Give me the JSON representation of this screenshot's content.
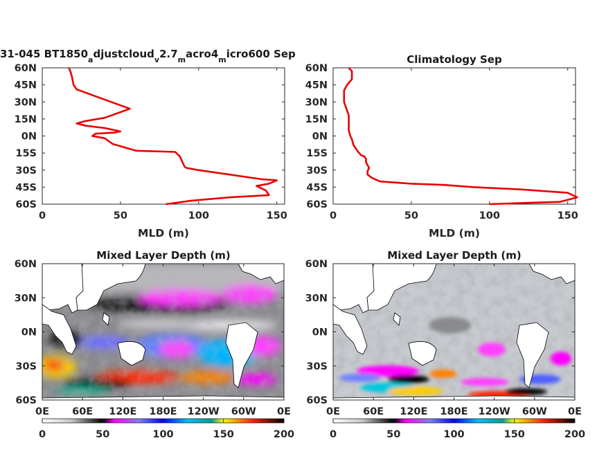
{
  "colors": {
    "line": "#e80000",
    "axis": "#262626",
    "land": "#ffffff"
  },
  "chart_data": [
    {
      "type": "line",
      "title": "31-045 BT1850",
      "title_parts": [
        {
          "text": "31-045 BT1850",
          "sub": false
        },
        {
          "text": "a",
          "sub": true
        },
        {
          "text": "djustcloud",
          "sub": false
        },
        {
          "text": "v",
          "sub": true
        },
        {
          "text": "2.7",
          "sub": false
        },
        {
          "text": "m",
          "sub": true
        },
        {
          "text": "acro4",
          "sub": false
        },
        {
          "text": "m",
          "sub": true
        },
        {
          "text": "icro600 Sep",
          "sub": false
        }
      ],
      "xlabel": "MLD (m)",
      "ylabel": "",
      "xlim": [
        0,
        155
      ],
      "ylim": [
        -60,
        60
      ],
      "xticks": [
        "0",
        "50",
        "100",
        "150"
      ],
      "yticks": [
        "60N",
        "45N",
        "30N",
        "15N",
        "0N",
        "15S",
        "30S",
        "45S",
        "60S"
      ],
      "series": [
        {
          "x": [
            79,
            95,
            120,
            145,
            143,
            137,
            145,
            150,
            140,
            120,
            100,
            92,
            91,
            88,
            85,
            60,
            45,
            40,
            32,
            34,
            46,
            50,
            40,
            28,
            22,
            27,
            40,
            56,
            50,
            22,
            20,
            19,
            18,
            17
          ],
          "y": [
            -60,
            -57,
            -54,
            -52,
            -48,
            -44,
            -42,
            -39,
            -38,
            -34,
            -30,
            -28,
            -27,
            -18,
            -14,
            -13,
            -7,
            -2,
            0,
            2,
            3,
            4,
            7,
            9,
            11,
            13,
            16,
            24,
            27,
            41,
            45,
            52,
            57,
            60
          ]
        }
      ]
    },
    {
      "type": "line",
      "title": "Climatology Sep",
      "xlabel": "MLD (m)",
      "ylabel": "",
      "xlim": [
        0,
        155
      ],
      "ylim": [
        -60,
        60
      ],
      "xticks": [
        "0",
        "50",
        "100",
        "150"
      ],
      "yticks": [
        "60N",
        "45N",
        "30N",
        "15N",
        "0N",
        "15S",
        "30S",
        "45S",
        "60S"
      ],
      "series": [
        {
          "x": [
            100,
            120,
            145,
            156,
            150,
            120,
            90,
            70,
            50,
            30,
            25,
            22,
            22,
            23,
            21,
            21,
            20,
            18,
            16,
            13,
            12,
            11,
            10,
            10,
            10,
            7,
            7,
            9,
            12,
            12,
            10
          ],
          "y": [
            -60,
            -59,
            -58,
            -54,
            -50,
            -47,
            -45,
            -43,
            -42,
            -40,
            -37,
            -34,
            -31,
            -28,
            -23,
            -20,
            -18,
            -17,
            -14,
            -8,
            -3,
            0,
            5,
            10,
            18,
            30,
            40,
            45,
            50,
            57,
            60
          ]
        }
      ]
    },
    {
      "type": "heatmap",
      "title": "Mixed Layer Depth (m)",
      "xlim": [
        0,
        360
      ],
      "ylim": [
        -60,
        60
      ],
      "xticks": [
        "0E",
        "60E",
        "120E",
        "180E",
        "120W",
        "60W",
        "0E"
      ],
      "yticks": [
        "60N",
        "30N",
        "0N",
        "30S",
        "60S"
      ],
      "colorbar": {
        "ticks": [
          "0",
          "50",
          "100",
          "150",
          "200"
        ],
        "range": [
          0,
          200
        ]
      }
    },
    {
      "type": "heatmap",
      "title": "Mixed Layer Depth (m)",
      "xlim": [
        0,
        360
      ],
      "ylim": [
        -60,
        60
      ],
      "xticks": [
        "0E",
        "60E",
        "120E",
        "180E",
        "120W",
        "60W",
        "0E"
      ],
      "yticks": [
        "60N",
        "30N",
        "0N",
        "30S",
        "60S"
      ],
      "colorbar": {
        "ticks": [
          "0",
          "50",
          "100",
          "150",
          "200"
        ],
        "range": [
          0,
          200
        ]
      }
    }
  ]
}
